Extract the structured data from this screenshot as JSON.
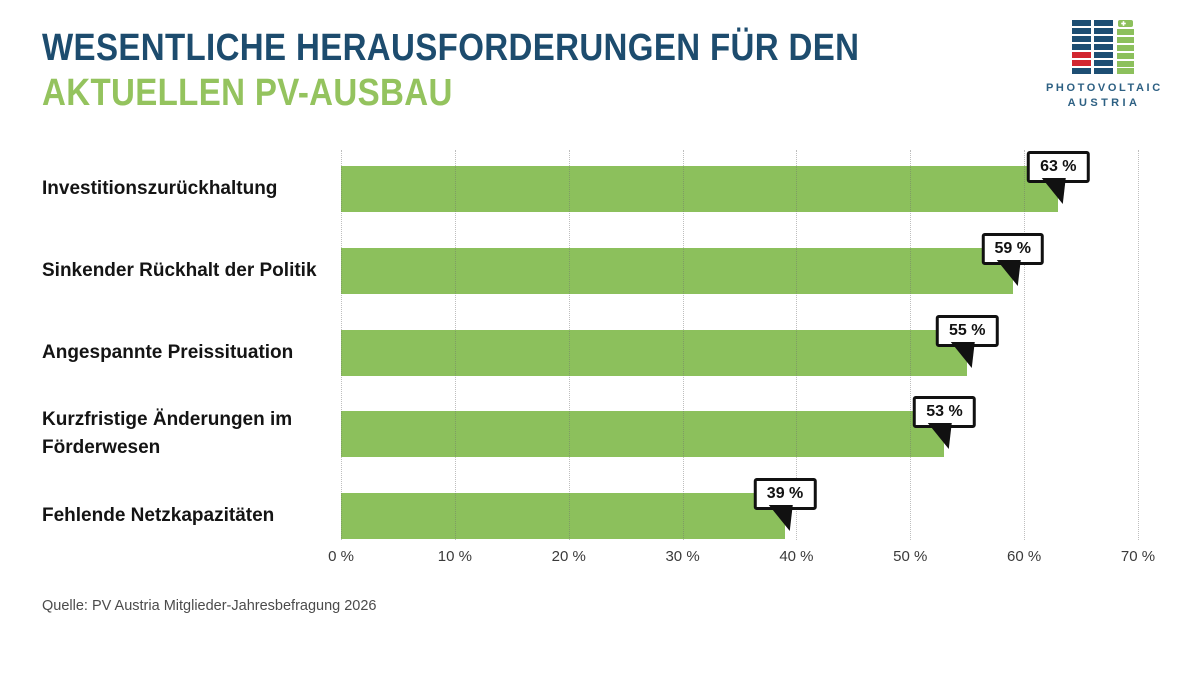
{
  "header": {
    "title_line1": "WESENTLICHE HERAUSFORDERUNGEN FÜR DEN",
    "title_line2": "AKTUELLEN PV-AUSBAU",
    "title_color_line1": "#1d4c6e",
    "title_color_line2": "#94c35e"
  },
  "logo": {
    "line1": "PHOTOVOLTAIC",
    "line2": "AUSTRIA",
    "colors": {
      "blue": "#1d4e73",
      "red": "#d22630",
      "green": "#8cc05c",
      "text": "#2d6083"
    }
  },
  "chart_data": {
    "type": "bar",
    "orientation": "horizontal",
    "title": "Wesentliche Herausforderungen für den aktuellen PV-Ausbau",
    "categories": [
      "Investitionszurückhaltung",
      "Sinkender Rückhalt der Politik",
      "Angespannte Preissituation",
      "Kurzfristige Änderungen im Förderwesen",
      "Fehlende Netzkapazitäten"
    ],
    "values": [
      63,
      59,
      55,
      53,
      39
    ],
    "value_labels": [
      "63 %",
      "59 %",
      "55 %",
      "53 %",
      "39 %"
    ],
    "xlim": [
      0,
      70
    ],
    "x_ticks": [
      "0 %",
      "10 %",
      "20 %",
      "30 %",
      "40 %",
      "50 %",
      "60 %",
      "70 %"
    ],
    "bar_color": "#8cc05c",
    "grid": true,
    "legend": false
  },
  "source": "Quelle: PV Austria Mitglieder-Jahresbefragung 2026"
}
